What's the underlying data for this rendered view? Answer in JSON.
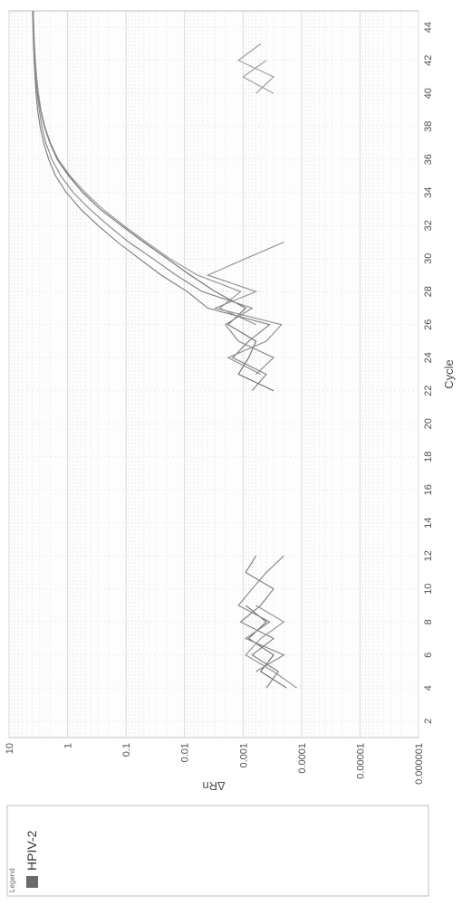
{
  "chart": {
    "type": "line",
    "orientation": "rotated-90-ccw",
    "xlabel": "Cycle",
    "ylabel": "ΔRn",
    "label_fontsize": 13,
    "tick_fontsize": 11,
    "background_color": "#ffffff",
    "grid_color_major": "#d9d9d9",
    "grid_color_minor": "#ececec",
    "plot_border_color": "#bfbfbf",
    "axis_text_color": "#4d4d4d",
    "x": {
      "min": 1,
      "max": 45,
      "ticks": [
        2,
        4,
        6,
        8,
        10,
        12,
        14,
        16,
        18,
        20,
        22,
        24,
        26,
        28,
        30,
        32,
        34,
        36,
        38,
        40,
        42,
        44
      ]
    },
    "y": {
      "scale": "log",
      "min": 1e-06,
      "max": 10,
      "ticks": [
        1e-06,
        1e-05,
        0.0001,
        0.001,
        0.01,
        0.1,
        1,
        10
      ],
      "tick_labels": [
        "0.000001",
        "0.00001",
        "0.0001",
        "0.001",
        "0.01",
        "0.1",
        "1",
        "10"
      ]
    },
    "threshold": {
      "value": 0.05,
      "color": "#7f7f7f",
      "width": 1
    },
    "series_style": {
      "width": 1.1
    },
    "series": [
      {
        "name": "s1",
        "color": "#6b6b6b",
        "points": [
          [
            4,
            0.00018
          ],
          [
            5,
            0.0005
          ],
          [
            6,
            0.0003
          ],
          [
            7,
            0.0008
          ],
          [
            8,
            0.0004
          ],
          [
            9,
            0.0009
          ],
          [
            22,
            0.0003
          ],
          [
            23,
            0.0012
          ],
          [
            24,
            0.0008
          ],
          [
            25,
            0.0006
          ],
          [
            26,
            0.0018
          ],
          [
            27,
            0.0009
          ],
          [
            28,
            0.003
          ],
          [
            29,
            0.008
          ],
          [
            30,
            0.02
          ],
          [
            31,
            0.05
          ],
          [
            32,
            0.12
          ],
          [
            33,
            0.28
          ],
          [
            34,
            0.55
          ],
          [
            35,
            0.95
          ],
          [
            36,
            1.5
          ],
          [
            37,
            2.0
          ],
          [
            38,
            2.5
          ],
          [
            39,
            2.9
          ],
          [
            40,
            3.2
          ],
          [
            41,
            3.4
          ],
          [
            42,
            3.55
          ],
          [
            43,
            3.7
          ],
          [
            44,
            3.8
          ],
          [
            45,
            3.85
          ]
        ]
      },
      {
        "name": "s2",
        "color": "#7a7a7a",
        "points": [
          [
            4,
            0.0004
          ],
          [
            5,
            0.00025
          ],
          [
            6,
            0.0007
          ],
          [
            7,
            0.0003
          ],
          [
            8,
            0.0011
          ],
          [
            9,
            0.0005
          ],
          [
            10,
            0.0003
          ],
          [
            11,
            0.0009
          ],
          [
            12,
            0.0006
          ],
          [
            22,
            0.0007
          ],
          [
            23,
            0.0004
          ],
          [
            24,
            0.0015
          ],
          [
            25,
            0.0008
          ],
          [
            26,
            0.00035
          ],
          [
            27,
            0.004
          ],
          [
            28,
            0.009
          ],
          [
            29,
            0.025
          ],
          [
            30,
            0.06
          ],
          [
            31,
            0.14
          ],
          [
            32,
            0.3
          ],
          [
            33,
            0.6
          ],
          [
            34,
            1.05
          ],
          [
            35,
            1.6
          ],
          [
            36,
            2.1
          ],
          [
            37,
            2.55
          ],
          [
            38,
            2.95
          ],
          [
            39,
            3.25
          ],
          [
            40,
            3.45
          ],
          [
            41,
            3.6
          ],
          [
            42,
            3.72
          ],
          [
            43,
            3.82
          ],
          [
            44,
            3.9
          ],
          [
            45,
            3.95
          ]
        ]
      },
      {
        "name": "s3",
        "color": "#858585",
        "points": [
          [
            5,
            0.0006
          ],
          [
            6,
            0.0002
          ],
          [
            7,
            0.0009
          ],
          [
            8,
            0.00035
          ],
          [
            9,
            0.0012
          ],
          [
            10,
            0.0007
          ],
          [
            11,
            0.0004
          ],
          [
            12,
            0.0002
          ],
          [
            23,
            0.0006
          ],
          [
            24,
            0.0003
          ],
          [
            25,
            0.0012
          ],
          [
            26,
            0.002
          ],
          [
            27,
            0.0007
          ],
          [
            28,
            0.005
          ],
          [
            29,
            0.014
          ],
          [
            30,
            0.035
          ],
          [
            31,
            0.09
          ],
          [
            32,
            0.2
          ],
          [
            33,
            0.42
          ],
          [
            34,
            0.8
          ],
          [
            35,
            1.3
          ],
          [
            36,
            1.85
          ],
          [
            37,
            2.35
          ],
          [
            38,
            2.75
          ],
          [
            39,
            3.05
          ],
          [
            40,
            3.3
          ],
          [
            41,
            3.5
          ],
          [
            42,
            3.63
          ],
          [
            43,
            3.74
          ],
          [
            44,
            3.83
          ],
          [
            45,
            3.9
          ]
        ]
      },
      {
        "name": "s4",
        "color": "#909090",
        "points": [
          [
            4,
            0.00012
          ],
          [
            5,
            0.0003
          ],
          [
            6,
            0.0009
          ],
          [
            7,
            0.0005
          ],
          [
            8,
            0.0002
          ],
          [
            9,
            0.0006
          ],
          [
            26,
            0.0006
          ],
          [
            27,
            0.0025
          ],
          [
            28,
            0.0011
          ],
          [
            29,
            0.006
          ],
          [
            30,
            0.018
          ],
          [
            31,
            0.045
          ],
          [
            32,
            0.11
          ],
          [
            33,
            0.25
          ],
          [
            34,
            0.5
          ],
          [
            35,
            0.9
          ],
          [
            36,
            1.45
          ],
          [
            37,
            1.95
          ],
          [
            38,
            2.45
          ],
          [
            39,
            2.85
          ],
          [
            40,
            3.15
          ],
          [
            41,
            3.38
          ],
          [
            42,
            3.55
          ],
          [
            43,
            3.68
          ],
          [
            44,
            3.78
          ],
          [
            45,
            3.86
          ]
        ]
      },
      {
        "name": "noise1",
        "color": "#8c8c8c",
        "points": [
          [
            23,
            0.0005
          ],
          [
            24,
            0.0018
          ],
          [
            25,
            0.0004
          ],
          [
            26,
            0.00022
          ],
          [
            27,
            0.003
          ],
          [
            28,
            0.0006
          ],
          [
            29,
            0.004
          ],
          [
            30,
            0.0009
          ],
          [
            31,
            0.0002
          ]
        ]
      },
      {
        "name": "noise2",
        "color": "#9a9a9a",
        "points": [
          [
            40,
            0.0006
          ],
          [
            41,
            0.0003
          ],
          [
            42,
            0.0012
          ],
          [
            43,
            0.0005
          ]
        ]
      },
      {
        "name": "noise3",
        "color": "#9a9a9a",
        "points": [
          [
            40,
            0.0003
          ],
          [
            41,
            0.001
          ],
          [
            42,
            0.0004
          ]
        ]
      }
    ]
  },
  "legend": {
    "title": "Legend",
    "title_fontsize": 8,
    "border_color": "#bfbfbf",
    "items": [
      {
        "label": "HPIV-2",
        "swatch_color": "#6b6b6b",
        "fontsize": 14
      }
    ]
  }
}
